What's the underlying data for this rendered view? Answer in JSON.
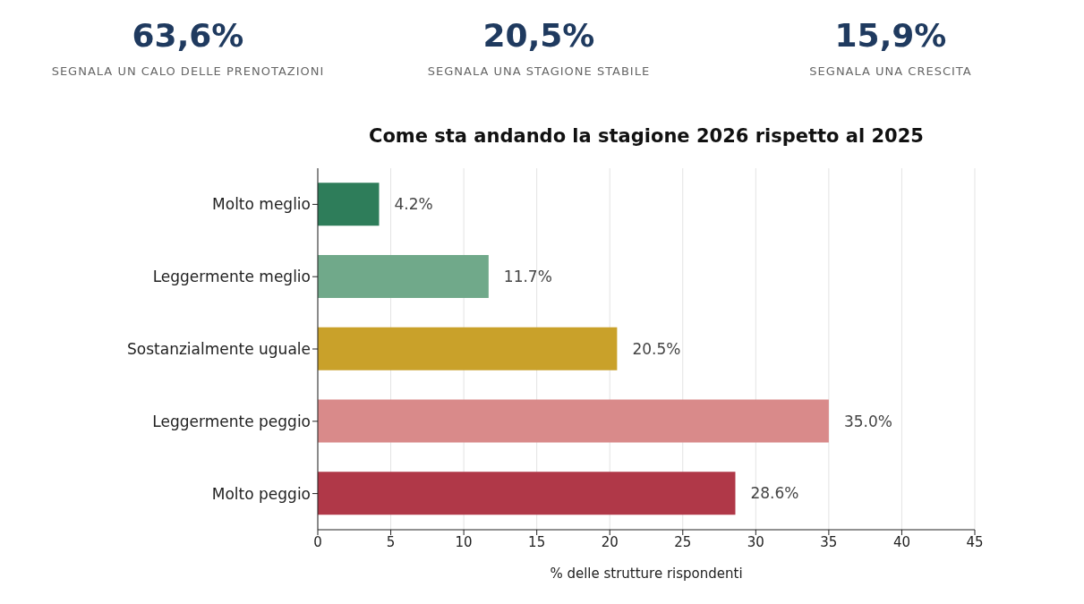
{
  "chart_data": [
    {
      "type": "other",
      "title": "63,6%",
      "subtitle": "SEGNALA UN CALO DELLE PRENOTAZIONI"
    },
    {
      "type": "other",
      "title": "20,5%",
      "subtitle": "SEGNALA UNA STAGIONE STABILE"
    },
    {
      "type": "other",
      "title": "15,9%",
      "subtitle": "SEGNALA UNA CRESCITA"
    },
    {
      "type": "bar",
      "orientation": "horizontal",
      "title": "Come sta andando la stagione 2026 rispetto al 2025",
      "xlabel": "% delle strutture rispondenti",
      "categories": [
        "Molto meglio",
        "Leggermente meglio",
        "Sostanzialmente uguale",
        "Leggermente peggio",
        "Molto peggio"
      ],
      "values": [
        4.2,
        11.7,
        20.5,
        35.0,
        28.6
      ],
      "colors": [
        "#2e7d5a",
        "#70a98a",
        "#c9a12a",
        "#d98a8a",
        "#b03848"
      ],
      "value_labels": [
        "4.2%",
        "11.7%",
        "20.5%",
        "35.0%",
        "28.6%"
      ],
      "xlim": [
        0,
        45
      ],
      "xticks": [
        0,
        5,
        10,
        15,
        20,
        25,
        30,
        35,
        40,
        45
      ],
      "grid": "x"
    }
  ]
}
